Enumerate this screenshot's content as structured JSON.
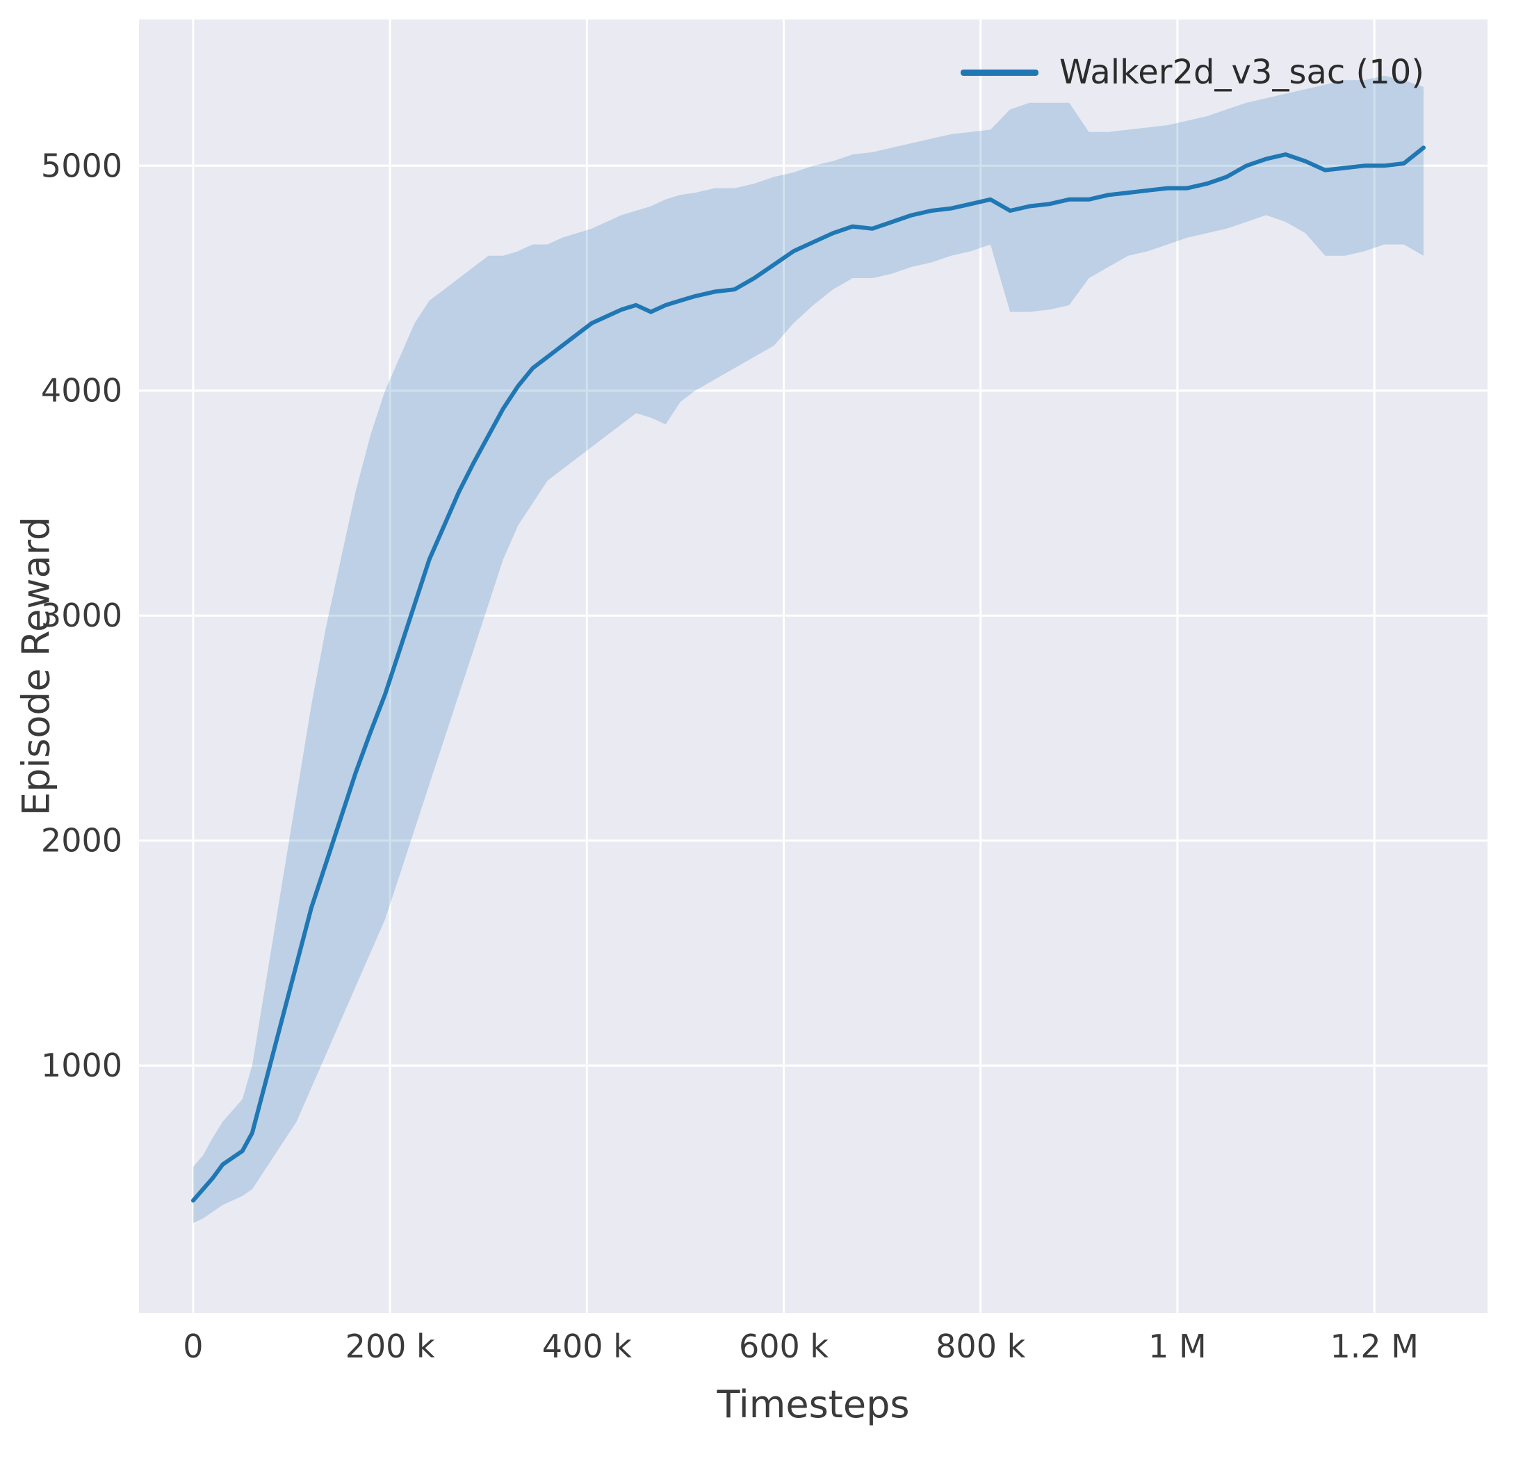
{
  "figure": {
    "background": "#ffffff",
    "text_color": "#3a3a3a"
  },
  "chart_data": {
    "type": "line",
    "title": "",
    "xlabel": "Timesteps",
    "ylabel": "Episode Reward",
    "grid": true,
    "background": "#eaeaf2",
    "grid_color": "#ffffff",
    "legend_position": "upper right",
    "xlim": [
      -55000,
      1315000
    ],
    "ylim": [
      -100,
      5650
    ],
    "x_ticks": [
      {
        "value": 0,
        "label": "0"
      },
      {
        "value": 200000,
        "label": "200 k"
      },
      {
        "value": 400000,
        "label": "400 k"
      },
      {
        "value": 600000,
        "label": "600 k"
      },
      {
        "value": 800000,
        "label": "800 k"
      },
      {
        "value": 1000000,
        "label": "1 M"
      },
      {
        "value": 1200000,
        "label": "1.2 M"
      }
    ],
    "y_ticks": [
      {
        "value": 1000,
        "label": "1000"
      },
      {
        "value": 2000,
        "label": "2000"
      },
      {
        "value": 3000,
        "label": "3000"
      },
      {
        "value": 4000,
        "label": "4000"
      },
      {
        "value": 5000,
        "label": "5000"
      }
    ],
    "series": [
      {
        "name": "Walker2d_v3_sac (10)",
        "color": "#1f77b4",
        "line_width": 6,
        "band_opacity": 0.22,
        "x": [
          0,
          10000,
          20000,
          30000,
          40000,
          50000,
          60000,
          75000,
          90000,
          105000,
          120000,
          135000,
          150000,
          165000,
          180000,
          195000,
          210000,
          225000,
          240000,
          255000,
          270000,
          285000,
          300000,
          315000,
          330000,
          345000,
          360000,
          375000,
          390000,
          405000,
          420000,
          435000,
          450000,
          465000,
          480000,
          495000,
          510000,
          530000,
          550000,
          570000,
          590000,
          610000,
          630000,
          650000,
          670000,
          690000,
          710000,
          730000,
          750000,
          770000,
          790000,
          810000,
          830000,
          850000,
          870000,
          890000,
          910000,
          930000,
          950000,
          970000,
          990000,
          1010000,
          1030000,
          1050000,
          1070000,
          1090000,
          1110000,
          1130000,
          1150000,
          1170000,
          1190000,
          1210000,
          1230000,
          1250000
        ],
        "mean": [
          400,
          450,
          500,
          560,
          590,
          620,
          700,
          950,
          1200,
          1450,
          1700,
          1900,
          2100,
          2300,
          2480,
          2650,
          2850,
          3050,
          3250,
          3400,
          3550,
          3680,
          3800,
          3920,
          4020,
          4100,
          4150,
          4200,
          4250,
          4300,
          4330,
          4360,
          4380,
          4350,
          4380,
          4400,
          4420,
          4440,
          4450,
          4500,
          4560,
          4620,
          4660,
          4700,
          4730,
          4720,
          4750,
          4780,
          4800,
          4810,
          4830,
          4850,
          4800,
          4820,
          4830,
          4850,
          4850,
          4870,
          4880,
          4890,
          4900,
          4900,
          4920,
          4950,
          5000,
          5030,
          5050,
          5020,
          4980,
          4990,
          5000,
          5000,
          5010,
          5080
        ],
        "lower": [
          300,
          320,
          350,
          380,
          400,
          420,
          450,
          550,
          650,
          750,
          900,
          1050,
          1200,
          1350,
          1500,
          1650,
          1850,
          2050,
          2250,
          2450,
          2650,
          2850,
          3050,
          3250,
          3400,
          3500,
          3600,
          3650,
          3700,
          3750,
          3800,
          3850,
          3900,
          3880,
          3850,
          3950,
          4000,
          4050,
          4100,
          4150,
          4200,
          4300,
          4380,
          4450,
          4500,
          4500,
          4520,
          4550,
          4570,
          4600,
          4620,
          4650,
          4350,
          4350,
          4360,
          4380,
          4500,
          4550,
          4600,
          4620,
          4650,
          4680,
          4700,
          4720,
          4750,
          4780,
          4750,
          4700,
          4600,
          4600,
          4620,
          4650,
          4650,
          4600
        ],
        "upper": [
          550,
          600,
          680,
          750,
          800,
          850,
          1000,
          1400,
          1800,
          2200,
          2600,
          2950,
          3250,
          3550,
          3800,
          4000,
          4150,
          4300,
          4400,
          4450,
          4500,
          4550,
          4600,
          4600,
          4620,
          4650,
          4650,
          4680,
          4700,
          4720,
          4750,
          4780,
          4800,
          4820,
          4850,
          4870,
          4880,
          4900,
          4900,
          4920,
          4950,
          4970,
          5000,
          5020,
          5050,
          5060,
          5080,
          5100,
          5120,
          5140,
          5150,
          5160,
          5250,
          5280,
          5280,
          5280,
          5150,
          5150,
          5160,
          5170,
          5180,
          5200,
          5220,
          5250,
          5280,
          5300,
          5320,
          5340,
          5360,
          5380,
          5380,
          5400,
          5380,
          5350
        ]
      }
    ]
  }
}
